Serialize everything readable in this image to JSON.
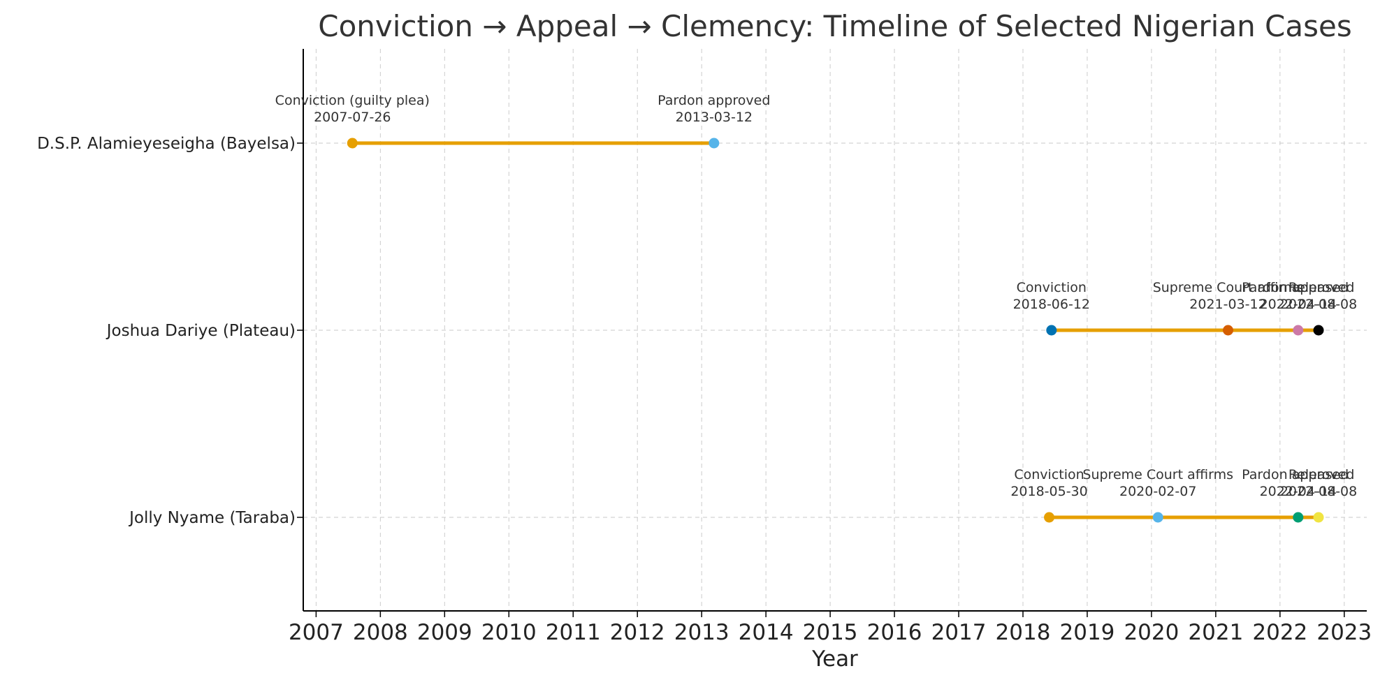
{
  "chart_data": {
    "type": "timeline",
    "title": "Conviction → Appeal → Clemency: Timeline of Selected Nigerian Cases",
    "xlabel": "Year",
    "ylabel": "",
    "x_ticks": [
      "2007",
      "2008",
      "2009",
      "2010",
      "2011",
      "2012",
      "2013",
      "2014",
      "2015",
      "2016",
      "2017",
      "2018",
      "2019",
      "2020",
      "2021",
      "2022",
      "2023"
    ],
    "xlim": [
      2006.8,
      2023.35
    ],
    "grid": true,
    "line_color": "#E69F00",
    "cases": [
      {
        "label": "D.S.P. Alamieyeseigha (Bayelsa)",
        "events": [
          {
            "label": "Conviction (guilty plea)",
            "date": "2007-07-26",
            "color": "#E69F00"
          },
          {
            "label": "Pardon approved",
            "date": "2013-03-12",
            "color": "#56B4E9"
          }
        ]
      },
      {
        "label": "Joshua Dariye (Plateau)",
        "events": [
          {
            "label": "Conviction",
            "date": "2018-06-12",
            "color": "#0072B2"
          },
          {
            "label": "Supreme Court affirms",
            "date": "2021-03-12",
            "color": "#D55E00"
          },
          {
            "label": "Pardon approved",
            "date": "2022-04-14",
            "color": "#CC79A7"
          },
          {
            "label": "Released",
            "date": "2022-08-08",
            "color": "#000000"
          }
        ]
      },
      {
        "label": "Jolly Nyame (Taraba)",
        "events": [
          {
            "label": "Conviction",
            "date": "2018-05-30",
            "color": "#E69F00"
          },
          {
            "label": "Supreme Court affirms",
            "date": "2020-02-07",
            "color": "#56B4E9"
          },
          {
            "label": "Pardon approved",
            "date": "2022-04-14",
            "color": "#009E73"
          },
          {
            "label": "Released",
            "date": "2022-08-08",
            "color": "#F0E442"
          }
        ]
      }
    ]
  }
}
